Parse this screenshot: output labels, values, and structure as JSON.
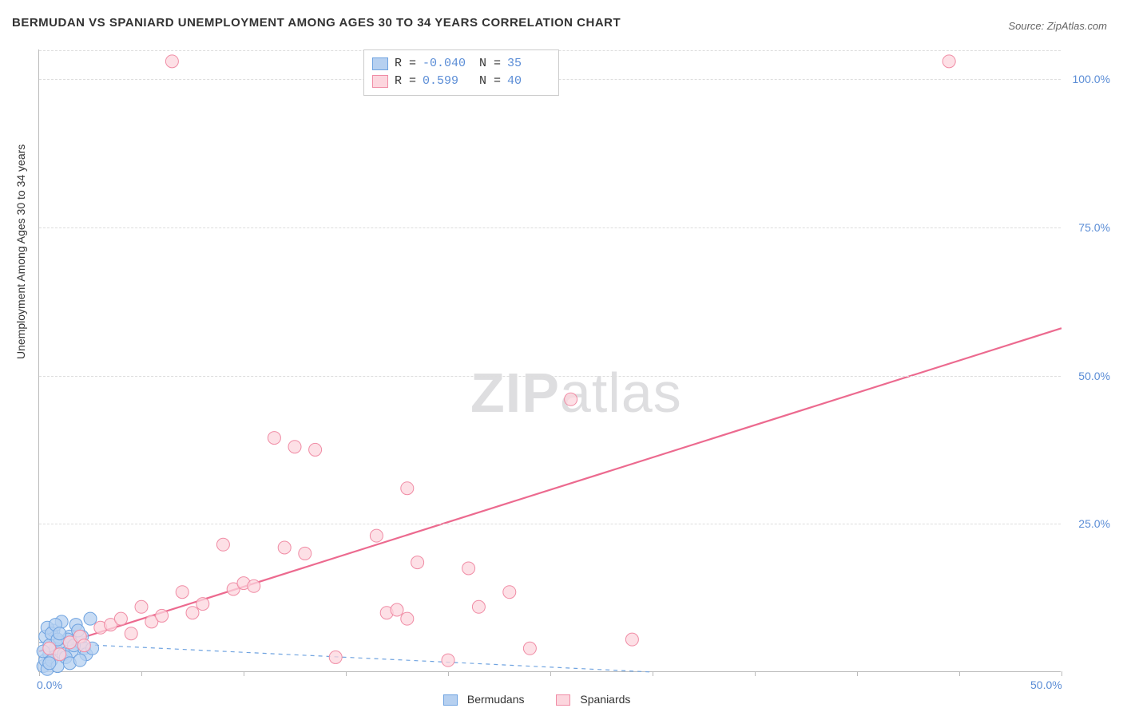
{
  "title": "BERMUDAN VS SPANIARD UNEMPLOYMENT AMONG AGES 30 TO 34 YEARS CORRELATION CHART",
  "source": "Source: ZipAtlas.com",
  "ylabel": "Unemployment Among Ages 30 to 34 years",
  "watermark_a": "ZIP",
  "watermark_b": "atlas",
  "chart": {
    "type": "scatter",
    "background_color": "#ffffff",
    "grid_color": "#dddddd",
    "axis_color": "#bbbbbb",
    "tick_label_color": "#5b8dd6",
    "xlim": [
      0,
      50
    ],
    "ylim": [
      0,
      105
    ],
    "ytick_values": [
      25,
      50,
      75,
      100
    ],
    "ytick_labels": [
      "25.0%",
      "50.0%",
      "75.0%",
      "100.0%"
    ],
    "xtick_values": [
      0,
      5,
      10,
      15,
      20,
      25,
      30,
      35,
      40,
      45,
      50
    ],
    "xtick_labels_shown": {
      "0": "0.0%",
      "50": "50.0%"
    },
    "series": [
      {
        "name": "Bermudans",
        "marker_fill": "#b6d0f0",
        "marker_stroke": "#6fa3e0",
        "marker_radius": 8,
        "marker_opacity": 0.75,
        "line_color": "#6fa3e0",
        "line_dash": "5,5",
        "line_width": 1.2,
        "regression": {
          "x1": 0,
          "y1": 5.0,
          "x2": 30,
          "y2": 0.0
        },
        "R": "-0.040",
        "N": "35",
        "points": [
          [
            0.2,
            1.0
          ],
          [
            0.3,
            2.0
          ],
          [
            0.5,
            3.0
          ],
          [
            0.4,
            0.5
          ],
          [
            0.8,
            4.0
          ],
          [
            1.0,
            5.0
          ],
          [
            1.2,
            3.0
          ],
          [
            1.5,
            6.0
          ],
          [
            0.6,
            2.0
          ],
          [
            0.9,
            1.0
          ],
          [
            1.8,
            8.0
          ],
          [
            2.0,
            5.0
          ],
          [
            2.2,
            4.0
          ],
          [
            0.3,
            6.0
          ],
          [
            0.7,
            7.0
          ],
          [
            1.1,
            8.5
          ],
          [
            1.4,
            5.5
          ],
          [
            0.5,
            4.5
          ],
          [
            1.6,
            3.5
          ],
          [
            2.5,
            9.0
          ],
          [
            0.4,
            7.5
          ],
          [
            0.6,
            6.5
          ],
          [
            1.3,
            2.5
          ],
          [
            1.7,
            4.5
          ],
          [
            0.9,
            5.5
          ],
          [
            2.1,
            6.0
          ],
          [
            2.3,
            3.0
          ],
          [
            0.8,
            8.0
          ],
          [
            1.5,
            1.5
          ],
          [
            2.6,
            4.0
          ],
          [
            1.9,
            7.0
          ],
          [
            0.2,
            3.5
          ],
          [
            1.0,
            6.5
          ],
          [
            0.5,
            1.5
          ],
          [
            2.0,
            2.0
          ]
        ]
      },
      {
        "name": "Spaniards",
        "marker_fill": "#fcd6de",
        "marker_stroke": "#f08ca5",
        "marker_radius": 8,
        "marker_opacity": 0.75,
        "line_color": "#ec6a8f",
        "line_dash": "none",
        "line_width": 2.2,
        "regression": {
          "x1": 0,
          "y1": 3.5,
          "x2": 50,
          "y2": 58.0
        },
        "R": "0.599",
        "N": "40",
        "points": [
          [
            0.5,
            4.0
          ],
          [
            1.0,
            3.0
          ],
          [
            1.5,
            5.0
          ],
          [
            2.0,
            6.0
          ],
          [
            2.2,
            4.5
          ],
          [
            3.0,
            7.5
          ],
          [
            3.5,
            8.0
          ],
          [
            4.0,
            9.0
          ],
          [
            4.5,
            6.5
          ],
          [
            5.0,
            11.0
          ],
          [
            5.5,
            8.5
          ],
          [
            6.0,
            9.5
          ],
          [
            7.0,
            13.5
          ],
          [
            7.5,
            10.0
          ],
          [
            8.0,
            11.5
          ],
          [
            9.0,
            21.5
          ],
          [
            9.5,
            14.0
          ],
          [
            10.0,
            15.0
          ],
          [
            10.5,
            14.5
          ],
          [
            11.5,
            39.5
          ],
          [
            12.0,
            21.0
          ],
          [
            12.5,
            38.0
          ],
          [
            13.0,
            20.0
          ],
          [
            13.5,
            37.5
          ],
          [
            14.5,
            2.5
          ],
          [
            16.5,
            23.0
          ],
          [
            17.0,
            10.0
          ],
          [
            17.5,
            10.5
          ],
          [
            18.0,
            31.0
          ],
          [
            18.5,
            18.5
          ],
          [
            20.0,
            2.0
          ],
          [
            21.0,
            17.5
          ],
          [
            21.5,
            11.0
          ],
          [
            23.0,
            13.5
          ],
          [
            24.0,
            4.0
          ],
          [
            26.0,
            46.0
          ],
          [
            29.0,
            5.5
          ],
          [
            6.5,
            103.0
          ],
          [
            44.5,
            103.0
          ],
          [
            18.0,
            9.0
          ]
        ]
      }
    ],
    "legend_bottom": [
      {
        "label": "Bermudans",
        "fill": "#b6d0f0",
        "stroke": "#6fa3e0"
      },
      {
        "label": "Spaniards",
        "fill": "#fcd6de",
        "stroke": "#f08ca5"
      }
    ]
  }
}
